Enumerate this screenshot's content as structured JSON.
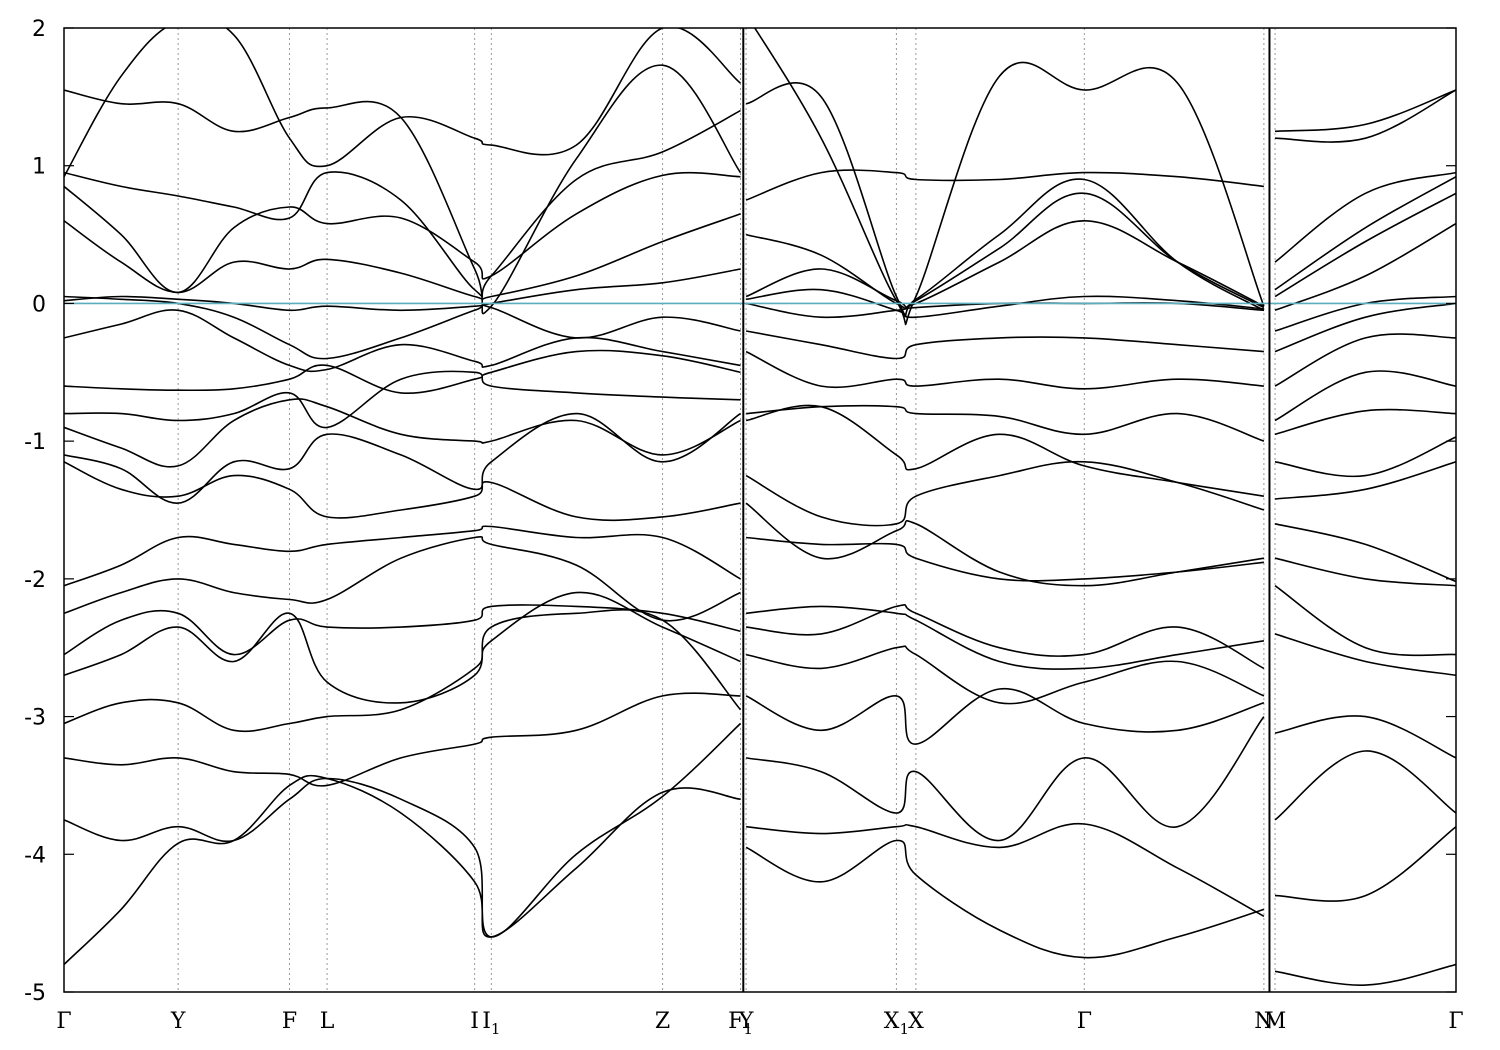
{
  "chart_data": {
    "type": "line",
    "title": "",
    "xlabel": "",
    "ylabel": "",
    "ylim": [
      -5,
      2
    ],
    "yticks": [
      -5,
      -4,
      -3,
      -2,
      -1,
      0,
      1,
      2
    ],
    "grid": "vertical dotted lines at high-symmetry points",
    "fermi_level": 0,
    "fermi_color": "#5aaebe",
    "line_color": "#000000",
    "x_range": [
      0,
      10
    ],
    "kpoints": [
      {
        "label": "Γ",
        "sub": "",
        "x": 0.0
      },
      {
        "label": "Y",
        "sub": "",
        "x": 0.82
      },
      {
        "label": "F",
        "sub": "",
        "x": 1.62
      },
      {
        "label": "L",
        "sub": "",
        "x": 1.89
      },
      {
        "label": "I",
        "sub": "",
        "x": 2.95
      },
      {
        "label": "I",
        "sub": "1",
        "x": 3.07
      },
      {
        "label": "Z",
        "sub": "",
        "x": 4.3
      },
      {
        "label": "F",
        "sub": "1",
        "x": 4.86
      },
      {
        "label": "Y",
        "sub": "",
        "x": 4.9
      },
      {
        "label": "X",
        "sub": "1",
        "x": 5.98
      },
      {
        "label": "X",
        "sub": "",
        "x": 6.12
      },
      {
        "label": "Γ",
        "sub": "",
        "x": 7.33
      },
      {
        "label": "N",
        "sub": "",
        "x": 8.62
      },
      {
        "label": "M",
        "sub": "",
        "x": 8.7
      },
      {
        "label": "Γ",
        "sub": "",
        "x": 10.0
      }
    ],
    "segment_breaks": [
      4.88,
      8.66
    ],
    "segments": [
      {
        "name": "Γ-Y-F-L-I-I1-Z-F1",
        "x": [
          0.0,
          0.41,
          0.82,
          1.22,
          1.62,
          1.89,
          2.42,
          2.95,
          3.07,
          3.68,
          4.3,
          4.86
        ],
        "bands": [
          [
            -4.8,
            -4.4,
            -3.92,
            -3.9,
            -3.5,
            -3.45,
            -3.7,
            -4.2,
            -4.6,
            -4.1,
            -3.55,
            -3.6
          ],
          [
            -3.75,
            -3.9,
            -3.8,
            -3.9,
            -3.6,
            -3.45,
            -3.6,
            -3.95,
            -4.6,
            -4.0,
            -3.58,
            -3.05
          ],
          [
            -3.3,
            -3.35,
            -3.3,
            -3.4,
            -3.42,
            -3.5,
            -3.3,
            -3.2,
            -3.15,
            -3.1,
            -2.85,
            -2.85
          ],
          [
            -3.05,
            -2.9,
            -2.9,
            -3.1,
            -3.05,
            -3.0,
            -2.95,
            -2.65,
            -2.45,
            -2.1,
            -2.35,
            -2.6
          ],
          [
            -2.7,
            -2.55,
            -2.35,
            -2.6,
            -2.25,
            -2.75,
            -2.9,
            -2.7,
            -2.35,
            -2.25,
            -2.3,
            -2.95
          ],
          [
            -2.55,
            -2.3,
            -2.25,
            -2.55,
            -2.3,
            -2.35,
            -2.35,
            -2.3,
            -2.2,
            -2.2,
            -2.25,
            -2.38
          ],
          [
            -2.25,
            -2.1,
            -2.0,
            -2.1,
            -2.15,
            -2.15,
            -1.85,
            -1.7,
            -1.75,
            -1.9,
            -2.3,
            -2.1
          ],
          [
            -2.05,
            -1.9,
            -1.7,
            -1.75,
            -1.8,
            -1.75,
            -1.7,
            -1.65,
            -1.62,
            -1.7,
            -1.7,
            -2.0
          ],
          [
            -1.15,
            -1.35,
            -1.4,
            -1.25,
            -1.35,
            -1.55,
            -1.5,
            -1.4,
            -1.3,
            -1.55,
            -1.55,
            -1.45
          ],
          [
            -1.1,
            -1.2,
            -1.45,
            -1.15,
            -1.2,
            -0.95,
            -1.1,
            -1.35,
            -1.15,
            -0.8,
            -1.15,
            -0.8
          ],
          [
            -0.9,
            -1.05,
            -1.18,
            -0.85,
            -0.7,
            -0.75,
            -0.95,
            -1.0,
            -1.0,
            -0.85,
            -1.1,
            -0.85
          ],
          [
            -0.8,
            -0.8,
            -0.85,
            -0.8,
            -0.65,
            -0.9,
            -0.55,
            -0.5,
            -0.6,
            -0.65,
            -0.68,
            -0.7
          ],
          [
            -0.6,
            -0.62,
            -0.63,
            -0.62,
            -0.55,
            -0.45,
            -0.65,
            -0.55,
            -0.5,
            -0.35,
            -0.38,
            -0.5
          ],
          [
            -0.25,
            -0.15,
            -0.05,
            -0.25,
            -0.45,
            -0.48,
            -0.3,
            -0.42,
            -0.45,
            -0.25,
            -0.35,
            -0.45
          ],
          [
            0.05,
            0.03,
            0.0,
            -0.1,
            -0.3,
            -0.4,
            -0.25,
            -0.05,
            -0.03,
            -0.25,
            -0.1,
            -0.2
          ],
          [
            0.02,
            0.05,
            0.03,
            0.0,
            -0.05,
            -0.02,
            -0.05,
            -0.02,
            0.0,
            0.1,
            0.15,
            0.25
          ],
          [
            0.6,
            0.3,
            0.08,
            0.3,
            0.25,
            0.32,
            0.22,
            0.05,
            0.05,
            0.2,
            0.45,
            0.65
          ],
          [
            0.85,
            0.5,
            0.08,
            0.55,
            0.7,
            0.58,
            0.62,
            0.3,
            0.2,
            0.65,
            0.93,
            0.92
          ],
          [
            0.95,
            0.85,
            0.78,
            0.7,
            0.62,
            0.95,
            0.75,
            0.1,
            0.2,
            0.9,
            1.1,
            1.4
          ],
          [
            1.55,
            1.45,
            1.45,
            1.25,
            1.35,
            1.42,
            1.35,
            0.25,
            -0.02,
            1.05,
            1.73,
            0.95
          ],
          [
            0.92,
            1.65,
            2.05,
            1.95,
            1.2,
            1.0,
            1.35,
            1.2,
            1.15,
            1.15,
            2.0,
            1.6
          ]
        ]
      },
      {
        "name": "Y-X1-X-Γ-N",
        "x": [
          4.9,
          5.44,
          5.98,
          6.12,
          6.72,
          7.33,
          8.0,
          8.62
        ],
        "bands": [
          [
            -3.95,
            -4.2,
            -3.9,
            -4.15,
            -4.55,
            -4.75,
            -4.6,
            -4.4
          ],
          [
            -3.8,
            -3.85,
            -3.8,
            -3.8,
            -3.95,
            -3.78,
            -4.1,
            -4.45
          ],
          [
            -3.3,
            -3.4,
            -3.7,
            -3.4,
            -3.9,
            -3.3,
            -3.8,
            -3.0
          ],
          [
            -2.85,
            -3.1,
            -2.85,
            -3.2,
            -2.8,
            -3.05,
            -3.1,
            -2.9
          ],
          [
            -2.55,
            -2.65,
            -2.5,
            -2.55,
            -2.9,
            -2.75,
            -2.6,
            -2.85
          ],
          [
            -2.35,
            -2.4,
            -2.2,
            -2.25,
            -2.5,
            -2.55,
            -2.35,
            -2.65
          ],
          [
            -2.25,
            -2.2,
            -2.25,
            -2.3,
            -2.6,
            -2.65,
            -2.55,
            -2.45
          ],
          [
            -1.7,
            -1.75,
            -1.75,
            -1.85,
            -2.0,
            -2.0,
            -1.95,
            -1.88
          ],
          [
            -1.45,
            -1.85,
            -1.65,
            -1.6,
            -1.95,
            -2.05,
            -1.95,
            -1.85
          ],
          [
            -1.25,
            -1.55,
            -1.6,
            -1.4,
            -1.25,
            -1.15,
            -1.3,
            -1.5
          ],
          [
            -0.85,
            -0.75,
            -1.1,
            -1.2,
            -0.95,
            -1.18,
            -1.3,
            -1.4
          ],
          [
            -0.8,
            -0.75,
            -0.75,
            -0.8,
            -0.82,
            -0.95,
            -0.8,
            -1.0
          ],
          [
            -0.35,
            -0.6,
            -0.55,
            -0.6,
            -0.55,
            -0.62,
            -0.55,
            -0.6
          ],
          [
            -0.2,
            -0.3,
            -0.4,
            -0.3,
            -0.25,
            -0.25,
            -0.3,
            -0.35
          ],
          [
            0.0,
            -0.1,
            -0.05,
            -0.03,
            0.0,
            0.0,
            0.0,
            -0.05
          ],
          [
            0.03,
            0.1,
            -0.05,
            -0.1,
            -0.02,
            0.05,
            0.02,
            -0.04
          ],
          [
            0.05,
            0.25,
            0.02,
            0.0,
            0.3,
            0.6,
            0.3,
            -0.02
          ],
          [
            0.5,
            0.35,
            0.0,
            0.02,
            0.4,
            0.8,
            0.3,
            -0.03
          ],
          [
            0.75,
            0.95,
            0.95,
            0.9,
            0.9,
            0.95,
            0.92,
            0.85
          ],
          [
            1.45,
            1.5,
            0.05,
            0.03,
            0.5,
            0.9,
            0.3,
            -0.05
          ],
          [
            2.1,
            1.2,
            0.02,
            0.05,
            1.65,
            1.55,
            1.6,
            -0.02
          ]
        ]
      },
      {
        "name": "M-Γ",
        "x": [
          8.7,
          9.35,
          10.0
        ],
        "bands": [
          [
            -4.85,
            -4.95,
            -4.8
          ],
          [
            -4.3,
            -4.3,
            -3.8
          ],
          [
            -3.75,
            -3.25,
            -3.7
          ],
          [
            -3.12,
            -3.0,
            -3.3
          ],
          [
            -2.4,
            -2.6,
            -2.7
          ],
          [
            -2.05,
            -2.5,
            -2.55
          ],
          [
            -1.85,
            -2.0,
            -2.05
          ],
          [
            -1.6,
            -1.75,
            -2.02
          ],
          [
            -1.42,
            -1.35,
            -1.15
          ],
          [
            -1.15,
            -1.25,
            -0.97
          ],
          [
            -0.95,
            -0.78,
            -0.8
          ],
          [
            -0.85,
            -0.5,
            -0.6
          ],
          [
            -0.6,
            -0.25,
            -0.25
          ],
          [
            -0.35,
            -0.1,
            0.0
          ],
          [
            -0.2,
            0.0,
            0.05
          ],
          [
            -0.05,
            0.2,
            0.58
          ],
          [
            0.05,
            0.45,
            0.8
          ],
          [
            0.1,
            0.55,
            0.92
          ],
          [
            0.3,
            0.8,
            0.95
          ],
          [
            1.25,
            1.3,
            1.55
          ],
          [
            1.2,
            1.2,
            1.55
          ]
        ]
      }
    ]
  }
}
